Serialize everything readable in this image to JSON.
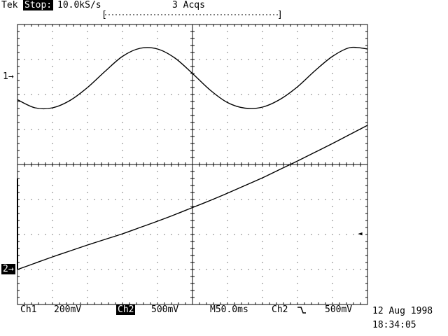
{
  "header": {
    "brand": "Tek",
    "run_state": "Stop:",
    "sample_rate": "10.0kS/s",
    "acquisitions": "3 Acqs",
    "record_left_bracket": "[",
    "record_right_bracket": "]"
  },
  "markers": {
    "ch1_marker": "1→",
    "ch2_marker": "2→",
    "trigger_level_marker": "◄"
  },
  "status_bar": {
    "ch1_label": "Ch1",
    "ch1_scale": "200mV",
    "ch2_label": "Ch2",
    "ch2_scale": "500mV",
    "timebase": "M50.0ms",
    "trigger_source": "Ch2",
    "trigger_slope_icon": "falling-edge-icon",
    "trigger_level": "500mV"
  },
  "datetime": {
    "date": "12 Aug 1998",
    "time": "18:34:05"
  },
  "colors": {
    "background": "#ffffff",
    "trace": "#000000"
  },
  "chart_data": {
    "type": "line",
    "grid": true,
    "x_divisions": 10,
    "y_divisions": 8,
    "xlim_div": [
      0,
      10
    ],
    "ylim_div": [
      -4,
      4
    ],
    "series": [
      {
        "x_div": [
          0,
          0.5,
          1,
          1.5,
          2,
          2.5,
          3,
          3.5,
          4,
          4.5,
          5,
          5.5,
          6,
          6.5,
          7,
          7.5,
          8,
          8.5,
          9,
          9.5,
          10
        ],
        "y_div": [
          1.85,
          1.62,
          1.62,
          1.83,
          2.2,
          2.66,
          3.09,
          3.32,
          3.3,
          3.04,
          2.6,
          2.13,
          1.77,
          1.61,
          1.64,
          1.86,
          2.22,
          2.68,
          3.09,
          3.34,
          3.3
        ]
      },
      {
        "x_div": [
          0,
          0.5,
          1,
          1.5,
          2,
          2.5,
          3,
          3.5,
          4,
          4.5,
          5,
          5.5,
          6,
          6.5,
          7,
          7.5,
          8,
          8.5,
          9,
          9.5,
          10
        ],
        "y_div": [
          -3,
          -2.82,
          -2.64,
          -2.47,
          -2.3,
          -2.14,
          -1.98,
          -1.8,
          -1.62,
          -1.43,
          -1.23,
          -1.03,
          -0.82,
          -0.6,
          -0.38,
          -0.14,
          0.1,
          0.35,
          0.6,
          0.86,
          1.12
        ]
      }
    ]
  }
}
